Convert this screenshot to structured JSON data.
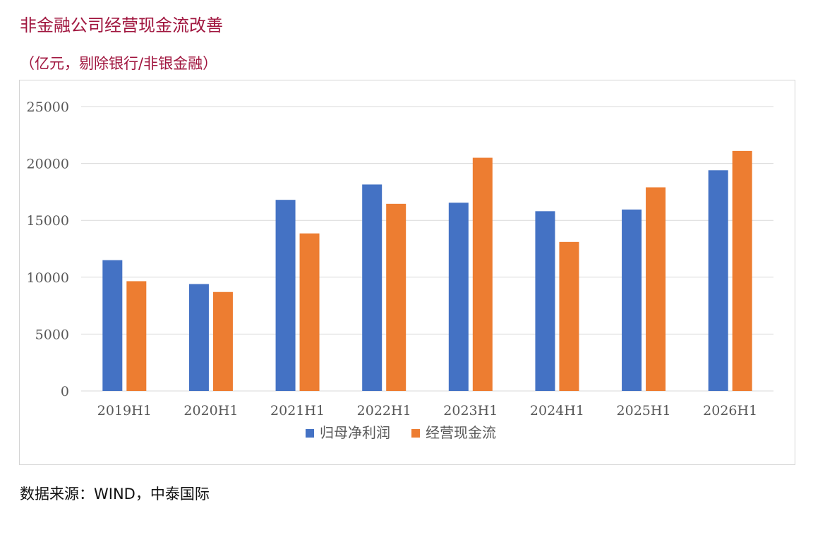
{
  "header": {
    "title": "非金融公司经营现金流改善",
    "subtitle": "（亿元，剔除银行/非银金融）"
  },
  "footer": {
    "source": "数据来源：WIND，中泰国际"
  },
  "colors": {
    "title": "#a0153e",
    "series_profit": "#4472c4",
    "series_cashflow": "#ed7d31",
    "grid": "#d9d9d9"
  },
  "chart_data": {
    "type": "bar",
    "categories": [
      "2019H1",
      "2020H1",
      "2021H1",
      "2022H1",
      "2023H1",
      "2024H1",
      "2025H1",
      "2026H1"
    ],
    "series": [
      {
        "name": "归母净利润",
        "color": "#4472c4",
        "values": [
          11500,
          9400,
          16800,
          18150,
          16550,
          15800,
          15950,
          19400
        ]
      },
      {
        "name": "经营现金流",
        "color": "#ed7d31",
        "values": [
          9650,
          8700,
          13850,
          16450,
          20500,
          13100,
          17900,
          21100
        ]
      }
    ],
    "ylim": [
      0,
      25000
    ],
    "yticks": [
      "0",
      "5000",
      "10000",
      "15000",
      "20000",
      "25000"
    ],
    "grid": true,
    "legend_position": "bottom"
  }
}
